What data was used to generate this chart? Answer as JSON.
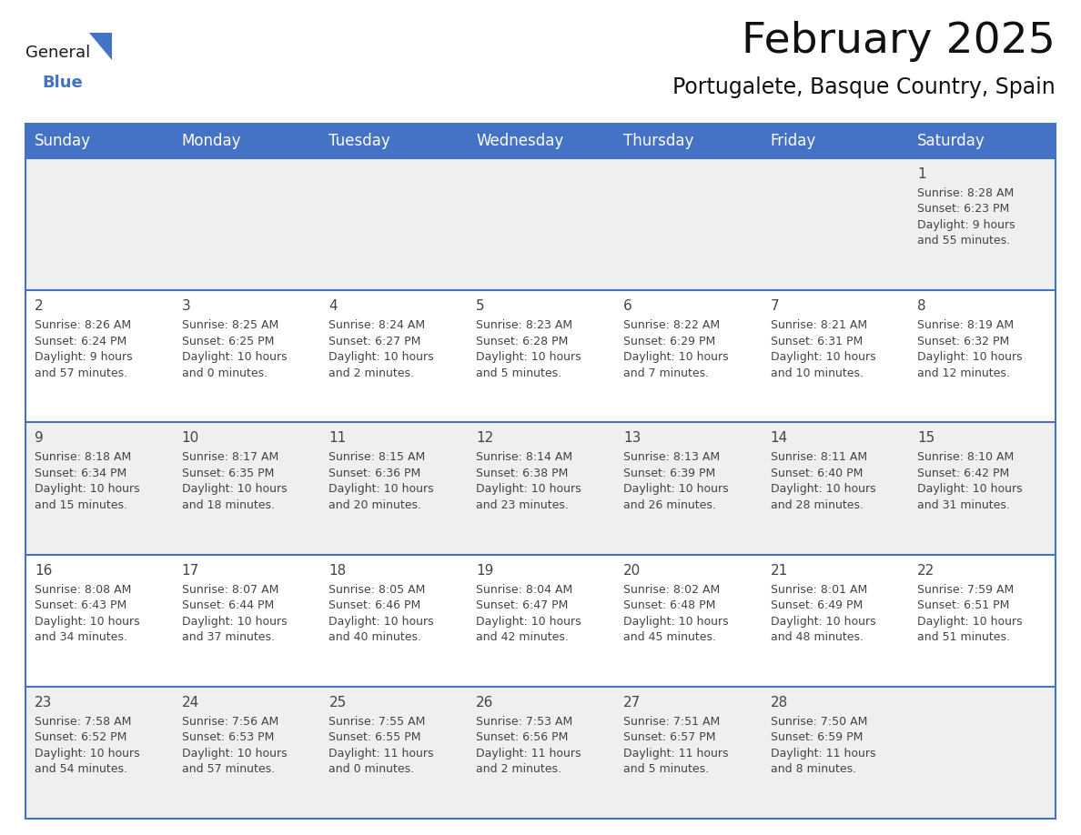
{
  "title": "February 2025",
  "subtitle": "Portugalete, Basque Country, Spain",
  "header_bg": "#4472C4",
  "header_text_color": "#FFFFFF",
  "cell_bg_row0": "#EFEFEF",
  "cell_bg_row1": "#FFFFFF",
  "cell_bg_row2": "#EFEFEF",
  "cell_bg_row3": "#FFFFFF",
  "cell_bg_row4": "#EFEFEF",
  "day_headers": [
    "Sunday",
    "Monday",
    "Tuesday",
    "Wednesday",
    "Thursday",
    "Friday",
    "Saturday"
  ],
  "title_fontsize": 34,
  "subtitle_fontsize": 17,
  "header_fontsize": 12,
  "day_num_fontsize": 11,
  "cell_fontsize": 9,
  "text_color": "#444444",
  "divider_color": "#4472C4",
  "days": [
    {
      "day": 1,
      "col": 6,
      "row": 0,
      "sunrise": "8:28 AM",
      "sunset": "6:23 PM",
      "daylight_h": "9 hours",
      "daylight_m": "and 55 minutes."
    },
    {
      "day": 2,
      "col": 0,
      "row": 1,
      "sunrise": "8:26 AM",
      "sunset": "6:24 PM",
      "daylight_h": "9 hours",
      "daylight_m": "and 57 minutes."
    },
    {
      "day": 3,
      "col": 1,
      "row": 1,
      "sunrise": "8:25 AM",
      "sunset": "6:25 PM",
      "daylight_h": "10 hours",
      "daylight_m": "and 0 minutes."
    },
    {
      "day": 4,
      "col": 2,
      "row": 1,
      "sunrise": "8:24 AM",
      "sunset": "6:27 PM",
      "daylight_h": "10 hours",
      "daylight_m": "and 2 minutes."
    },
    {
      "day": 5,
      "col": 3,
      "row": 1,
      "sunrise": "8:23 AM",
      "sunset": "6:28 PM",
      "daylight_h": "10 hours",
      "daylight_m": "and 5 minutes."
    },
    {
      "day": 6,
      "col": 4,
      "row": 1,
      "sunrise": "8:22 AM",
      "sunset": "6:29 PM",
      "daylight_h": "10 hours",
      "daylight_m": "and 7 minutes."
    },
    {
      "day": 7,
      "col": 5,
      "row": 1,
      "sunrise": "8:21 AM",
      "sunset": "6:31 PM",
      "daylight_h": "10 hours",
      "daylight_m": "and 10 minutes."
    },
    {
      "day": 8,
      "col": 6,
      "row": 1,
      "sunrise": "8:19 AM",
      "sunset": "6:32 PM",
      "daylight_h": "10 hours",
      "daylight_m": "and 12 minutes."
    },
    {
      "day": 9,
      "col": 0,
      "row": 2,
      "sunrise": "8:18 AM",
      "sunset": "6:34 PM",
      "daylight_h": "10 hours",
      "daylight_m": "and 15 minutes."
    },
    {
      "day": 10,
      "col": 1,
      "row": 2,
      "sunrise": "8:17 AM",
      "sunset": "6:35 PM",
      "daylight_h": "10 hours",
      "daylight_m": "and 18 minutes."
    },
    {
      "day": 11,
      "col": 2,
      "row": 2,
      "sunrise": "8:15 AM",
      "sunset": "6:36 PM",
      "daylight_h": "10 hours",
      "daylight_m": "and 20 minutes."
    },
    {
      "day": 12,
      "col": 3,
      "row": 2,
      "sunrise": "8:14 AM",
      "sunset": "6:38 PM",
      "daylight_h": "10 hours",
      "daylight_m": "and 23 minutes."
    },
    {
      "day": 13,
      "col": 4,
      "row": 2,
      "sunrise": "8:13 AM",
      "sunset": "6:39 PM",
      "daylight_h": "10 hours",
      "daylight_m": "and 26 minutes."
    },
    {
      "day": 14,
      "col": 5,
      "row": 2,
      "sunrise": "8:11 AM",
      "sunset": "6:40 PM",
      "daylight_h": "10 hours",
      "daylight_m": "and 28 minutes."
    },
    {
      "day": 15,
      "col": 6,
      "row": 2,
      "sunrise": "8:10 AM",
      "sunset": "6:42 PM",
      "daylight_h": "10 hours",
      "daylight_m": "and 31 minutes."
    },
    {
      "day": 16,
      "col": 0,
      "row": 3,
      "sunrise": "8:08 AM",
      "sunset": "6:43 PM",
      "daylight_h": "10 hours",
      "daylight_m": "and 34 minutes."
    },
    {
      "day": 17,
      "col": 1,
      "row": 3,
      "sunrise": "8:07 AM",
      "sunset": "6:44 PM",
      "daylight_h": "10 hours",
      "daylight_m": "and 37 minutes."
    },
    {
      "day": 18,
      "col": 2,
      "row": 3,
      "sunrise": "8:05 AM",
      "sunset": "6:46 PM",
      "daylight_h": "10 hours",
      "daylight_m": "and 40 minutes."
    },
    {
      "day": 19,
      "col": 3,
      "row": 3,
      "sunrise": "8:04 AM",
      "sunset": "6:47 PM",
      "daylight_h": "10 hours",
      "daylight_m": "and 42 minutes."
    },
    {
      "day": 20,
      "col": 4,
      "row": 3,
      "sunrise": "8:02 AM",
      "sunset": "6:48 PM",
      "daylight_h": "10 hours",
      "daylight_m": "and 45 minutes."
    },
    {
      "day": 21,
      "col": 5,
      "row": 3,
      "sunrise": "8:01 AM",
      "sunset": "6:49 PM",
      "daylight_h": "10 hours",
      "daylight_m": "and 48 minutes."
    },
    {
      "day": 22,
      "col": 6,
      "row": 3,
      "sunrise": "7:59 AM",
      "sunset": "6:51 PM",
      "daylight_h": "10 hours",
      "daylight_m": "and 51 minutes."
    },
    {
      "day": 23,
      "col": 0,
      "row": 4,
      "sunrise": "7:58 AM",
      "sunset": "6:52 PM",
      "daylight_h": "10 hours",
      "daylight_m": "and 54 minutes."
    },
    {
      "day": 24,
      "col": 1,
      "row": 4,
      "sunrise": "7:56 AM",
      "sunset": "6:53 PM",
      "daylight_h": "10 hours",
      "daylight_m": "and 57 minutes."
    },
    {
      "day": 25,
      "col": 2,
      "row": 4,
      "sunrise": "7:55 AM",
      "sunset": "6:55 PM",
      "daylight_h": "11 hours",
      "daylight_m": "and 0 minutes."
    },
    {
      "day": 26,
      "col": 3,
      "row": 4,
      "sunrise": "7:53 AM",
      "sunset": "6:56 PM",
      "daylight_h": "11 hours",
      "daylight_m": "and 2 minutes."
    },
    {
      "day": 27,
      "col": 4,
      "row": 4,
      "sunrise": "7:51 AM",
      "sunset": "6:57 PM",
      "daylight_h": "11 hours",
      "daylight_m": "and 5 minutes."
    },
    {
      "day": 28,
      "col": 5,
      "row": 4,
      "sunrise": "7:50 AM",
      "sunset": "6:59 PM",
      "daylight_h": "11 hours",
      "daylight_m": "and 8 minutes."
    }
  ]
}
